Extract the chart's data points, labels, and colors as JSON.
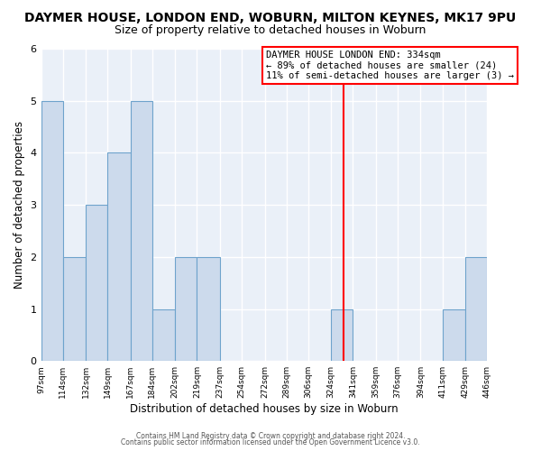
{
  "title": "DAYMER HOUSE, LONDON END, WOBURN, MILTON KEYNES, MK17 9PU",
  "subtitle": "Size of property relative to detached houses in Woburn",
  "xlabel": "Distribution of detached houses by size in Woburn",
  "ylabel": "Number of detached properties",
  "bin_edges": [
    97,
    114,
    132,
    149,
    167,
    184,
    202,
    219,
    237,
    254,
    272,
    289,
    306,
    324,
    341,
    359,
    376,
    394,
    411,
    429,
    446
  ],
  "bin_labels": [
    "97sqm",
    "114sqm",
    "132sqm",
    "149sqm",
    "167sqm",
    "184sqm",
    "202sqm",
    "219sqm",
    "237sqm",
    "254sqm",
    "272sqm",
    "289sqm",
    "306sqm",
    "324sqm",
    "341sqm",
    "359sqm",
    "376sqm",
    "394sqm",
    "411sqm",
    "429sqm",
    "446sqm"
  ],
  "heights": [
    5,
    2,
    3,
    4,
    5,
    1,
    2,
    2,
    0,
    0,
    0,
    0,
    0,
    1,
    0,
    0,
    0,
    0,
    1,
    2
  ],
  "bar_color": "#ccdaec",
  "bar_edge_color": "#6ea3cc",
  "reference_line_x": 334,
  "reference_line_color": "#ff0000",
  "annotation_title": "DAYMER HOUSE LONDON END: 334sqm",
  "annotation_line1": "← 89% of detached houses are smaller (24)",
  "annotation_line2": "11% of semi-detached houses are larger (3) →",
  "annotation_box_color": "#ffffff",
  "annotation_box_edge": "#ff0000",
  "ylim": [
    0,
    6
  ],
  "yticks": [
    0,
    1,
    2,
    3,
    4,
    5,
    6
  ],
  "plot_bg_color": "#eaf0f8",
  "fig_bg_color": "#ffffff",
  "footer1": "Contains HM Land Registry data © Crown copyright and database right 2024.",
  "footer2": "Contains public sector information licensed under the Open Government Licence v3.0.",
  "title_fontsize": 10,
  "subtitle_fontsize": 9,
  "grid_color": "#ffffff",
  "grid_linewidth": 1.0
}
